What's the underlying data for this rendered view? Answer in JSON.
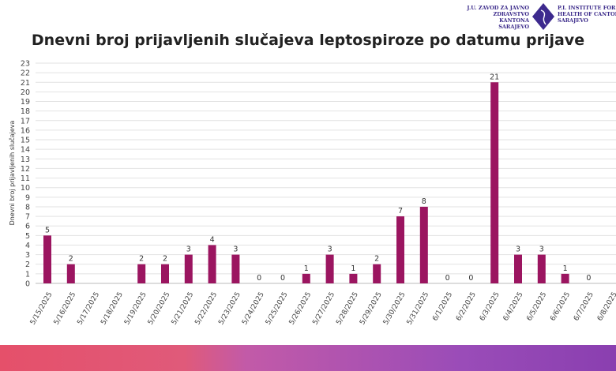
{
  "logo": {
    "left_text": [
      "J.U. ZAVOD ZA JAVNO",
      "ZDRAVSTVO KANTONA",
      "SARAJEVO"
    ],
    "right_text": [
      "P.I. INSTITUTE FOR PU",
      "HEALTH OF CANTON",
      "SARAJEVO"
    ]
  },
  "chart_data": {
    "type": "bar",
    "title": "Dnevni broj prijavljenih slučajeva leptospiroze po datumu prijave",
    "ylabel": "Dnevni broj prijavljenih slučajeva",
    "xlabel": "",
    "ylim": [
      0,
      23
    ],
    "yticks": [
      0,
      1,
      2,
      3,
      4,
      5,
      6,
      7,
      8,
      9,
      10,
      11,
      12,
      13,
      14,
      15,
      16,
      17,
      18,
      19,
      20,
      21,
      22,
      23
    ],
    "grid": true,
    "bar_color": "#9b1560",
    "categories": [
      "5/15/2025",
      "5/16/2025",
      "5/17/2025",
      "5/18/2025",
      "5/19/2025",
      "5/20/2025",
      "5/21/2025",
      "5/22/2025",
      "5/23/2025",
      "5/24/2025",
      "5/25/2025",
      "5/26/2025",
      "5/27/2025",
      "5/28/2025",
      "5/29/2025",
      "5/30/2025",
      "5/31/2025",
      "6/1/2025",
      "6/2/2025",
      "6/3/2025",
      "6/4/2025",
      "6/5/2025",
      "6/6/2025",
      "6/7/2025",
      "6/8/2025"
    ],
    "values": [
      5,
      2,
      null,
      null,
      2,
      2,
      3,
      4,
      3,
      0,
      0,
      1,
      3,
      1,
      2,
      7,
      8,
      0,
      0,
      21,
      3,
      3,
      1,
      0,
      null
    ]
  }
}
